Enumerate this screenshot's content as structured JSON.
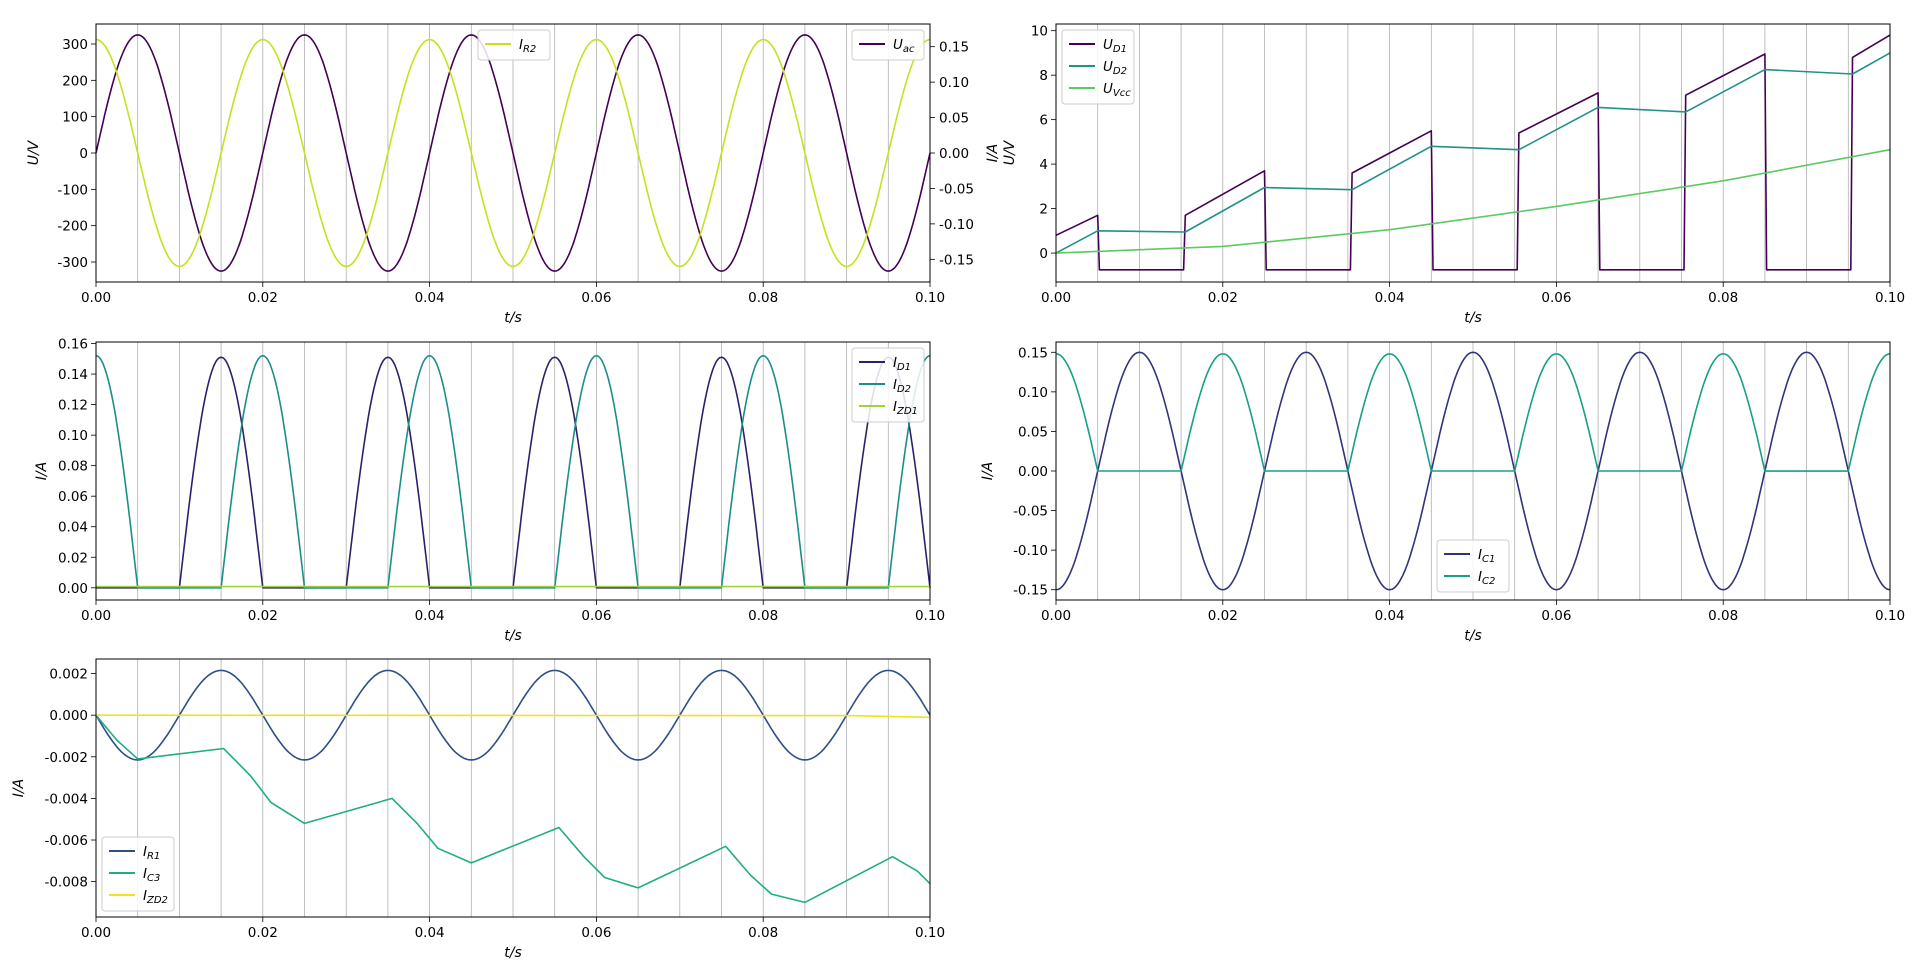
{
  "chart_data": [
    {
      "id": "p1",
      "type": "line",
      "xlabel": "t/s",
      "ylabel": "U/V",
      "xlim": [
        0,
        0.1
      ],
      "ylim": [
        -355,
        355
      ],
      "xticks": [
        "0.00",
        "0.02",
        "0.04",
        "0.06",
        "0.08",
        "0.10"
      ],
      "yticks": [
        "-300",
        "-200",
        "-100",
        "0",
        "100",
        "200",
        "300"
      ],
      "y2lim": [
        -0.182,
        0.182
      ],
      "y2ticks": [
        "-0.15",
        "-0.10",
        "-0.05",
        "0.00",
        "0.05",
        "0.10",
        "0.15"
      ],
      "grid": "vertical every 0.005 s",
      "series": [
        {
          "name": "U_ac",
          "color": "#440154",
          "axis": "left",
          "function": "sine",
          "amplitude": 325,
          "frequency_hz": 50,
          "phase_rad": 0
        },
        {
          "name": "I_R2",
          "color": "#c8e020",
          "axis": "right",
          "function": "cosine",
          "amplitude": 0.16,
          "frequency_hz": 50,
          "phase_rad": 0
        }
      ],
      "legends": [
        {
          "position": "upper-center",
          "entries": [
            "I_R2"
          ]
        },
        {
          "position": "upper-right",
          "entries": [
            "U_ac"
          ]
        }
      ]
    },
    {
      "id": "p2",
      "type": "line",
      "xlabel": "t/s",
      "ylabel": "I/A",
      "ylabel2": "U/V",
      "xlim": [
        0,
        0.1
      ],
      "ylim": [
        -1.3,
        10.3
      ],
      "xticks": [
        "0.00",
        "0.02",
        "0.04",
        "0.06",
        "0.08",
        "0.10"
      ],
      "yticks": [
        "0",
        "2",
        "4",
        "6",
        "8",
        "10"
      ],
      "grid": "vertical every 0.005 s",
      "series": [
        {
          "name": "U_D1",
          "color": "#440154",
          "x": [
            0,
            0.005,
            0.0052,
            0.0153,
            0.0155,
            0.025,
            0.0252,
            0.0353,
            0.0355,
            0.045,
            0.0452,
            0.0553,
            0.0555,
            0.065,
            0.0652,
            0.0753,
            0.0755,
            0.085,
            0.0852,
            0.0953,
            0.0955,
            0.1
          ],
          "y": [
            0.8,
            1.7,
            -0.75,
            -0.75,
            1.7,
            3.7,
            -0.75,
            -0.75,
            3.6,
            5.5,
            -0.75,
            -0.75,
            5.4,
            7.2,
            -0.75,
            -0.75,
            7.1,
            8.95,
            -0.75,
            -0.75,
            8.8,
            9.8
          ]
        },
        {
          "name": "U_D2",
          "color": "#21918c",
          "x": [
            0,
            0.005,
            0.0155,
            0.025,
            0.0355,
            0.045,
            0.0555,
            0.065,
            0.0755,
            0.085,
            0.0955,
            0.1
          ],
          "y": [
            0.0,
            1.0,
            0.95,
            2.95,
            2.85,
            4.8,
            4.65,
            6.55,
            6.35,
            8.25,
            8.05,
            9.0
          ]
        },
        {
          "name": "U_Vcc",
          "color": "#5ec962",
          "x": [
            0,
            0.02,
            0.04,
            0.06,
            0.08,
            0.1
          ],
          "y": [
            0.0,
            0.3,
            1.05,
            2.1,
            3.25,
            4.65
          ]
        }
      ],
      "legends": [
        {
          "position": "upper-left",
          "entries": [
            "U_D1",
            "U_D2",
            "U_Vcc"
          ]
        }
      ]
    },
    {
      "id": "p3",
      "type": "line",
      "xlabel": "t/s",
      "ylabel": "I/A",
      "xlim": [
        0,
        0.1
      ],
      "ylim": [
        -0.008,
        0.161
      ],
      "xticks": [
        "0.00",
        "0.02",
        "0.04",
        "0.06",
        "0.08",
        "0.10"
      ],
      "yticks": [
        "0.00",
        "0.02",
        "0.04",
        "0.06",
        "0.08",
        "0.10",
        "0.12",
        "0.14",
        "0.16"
      ],
      "grid": "vertical every 0.005 s",
      "series": [
        {
          "name": "I_D1",
          "color": "#2c2169",
          "function": "half-wave-negative-sine",
          "amplitude": 0.151,
          "frequency_hz": 50
        },
        {
          "name": "I_D2",
          "color": "#1b8f87",
          "function": "half-wave-positive-cosine",
          "amplitude": 0.152,
          "frequency_hz": 50
        },
        {
          "name": "I_ZD1",
          "color": "#a0d33a",
          "function": "constant",
          "value": 0.0008
        }
      ],
      "legends": [
        {
          "position": "upper-right",
          "entries": [
            "I_D1",
            "I_D2",
            "I_ZD1"
          ]
        }
      ]
    },
    {
      "id": "p4",
      "type": "line",
      "xlabel": "t/s",
      "ylabel": "I/A",
      "xlim": [
        0,
        0.1
      ],
      "ylim": [
        -0.163,
        0.163
      ],
      "xticks": [
        "0.00",
        "0.02",
        "0.04",
        "0.06",
        "0.08",
        "0.10"
      ],
      "yticks": [
        "-0.15",
        "-0.10",
        "-0.05",
        "0.00",
        "0.05",
        "0.10",
        "0.15"
      ],
      "grid": "vertical every 0.005 s",
      "series": [
        {
          "name": "I_C1",
          "color": "#31347a",
          "function": "half-wave-alternating",
          "amplitude": 0.15,
          "frequency_hz": 50,
          "off_slope": -8e-05
        },
        {
          "name": "I_C2",
          "color": "#17a085",
          "function": "half-wave-alternating-inverse",
          "amplitude": 0.148,
          "frequency_hz": 50,
          "off_slope": -8e-05
        }
      ],
      "legends": [
        {
          "position": "lower-center",
          "entries": [
            "I_C1",
            "I_C2"
          ]
        }
      ]
    },
    {
      "id": "p5",
      "type": "line",
      "xlabel": "t/s",
      "ylabel": "I/A",
      "xlim": [
        0,
        0.1
      ],
      "ylim": [
        -0.0097,
        0.0027
      ],
      "xticks": [
        "0.00",
        "0.02",
        "0.04",
        "0.06",
        "0.08",
        "0.10"
      ],
      "yticks": [
        "-0.008",
        "-0.006",
        "-0.004",
        "-0.002",
        "0.000",
        "0.002"
      ],
      "grid": "vertical every 0.005 s",
      "series": [
        {
          "name": "I_R1",
          "color": "#2d4f87",
          "function": "sine",
          "amplitude": -0.00215,
          "frequency_hz": 50,
          "phase_rad": 0
        },
        {
          "name": "I_C3",
          "color": "#20ad85",
          "x": [
            0,
            0.0025,
            0.005,
            0.0153,
            0.0185,
            0.021,
            0.025,
            0.0355,
            0.0385,
            0.041,
            0.045,
            0.0555,
            0.0585,
            0.061,
            0.065,
            0.0755,
            0.0785,
            0.081,
            0.085,
            0.0955,
            0.0985,
            0.1
          ],
          "y": [
            0.0,
            -0.0012,
            -0.0021,
            -0.0016,
            -0.0029,
            -0.0042,
            -0.0052,
            -0.004,
            -0.0052,
            -0.0064,
            -0.0071,
            -0.0054,
            -0.0068,
            -0.0078,
            -0.0083,
            -0.0063,
            -0.0077,
            -0.0086,
            -0.009,
            -0.0068,
            -0.0075,
            -0.0081
          ]
        },
        {
          "name": "I_ZD2",
          "color": "#f0e21c",
          "x": [
            0,
            0.09,
            0.1
          ],
          "y": [
            0.0,
            -2e-05,
            -0.0001
          ]
        }
      ],
      "legends": [
        {
          "position": "lower-left",
          "entries": [
            "I_R1",
            "I_C3",
            "I_ZD2"
          ]
        }
      ]
    }
  ]
}
